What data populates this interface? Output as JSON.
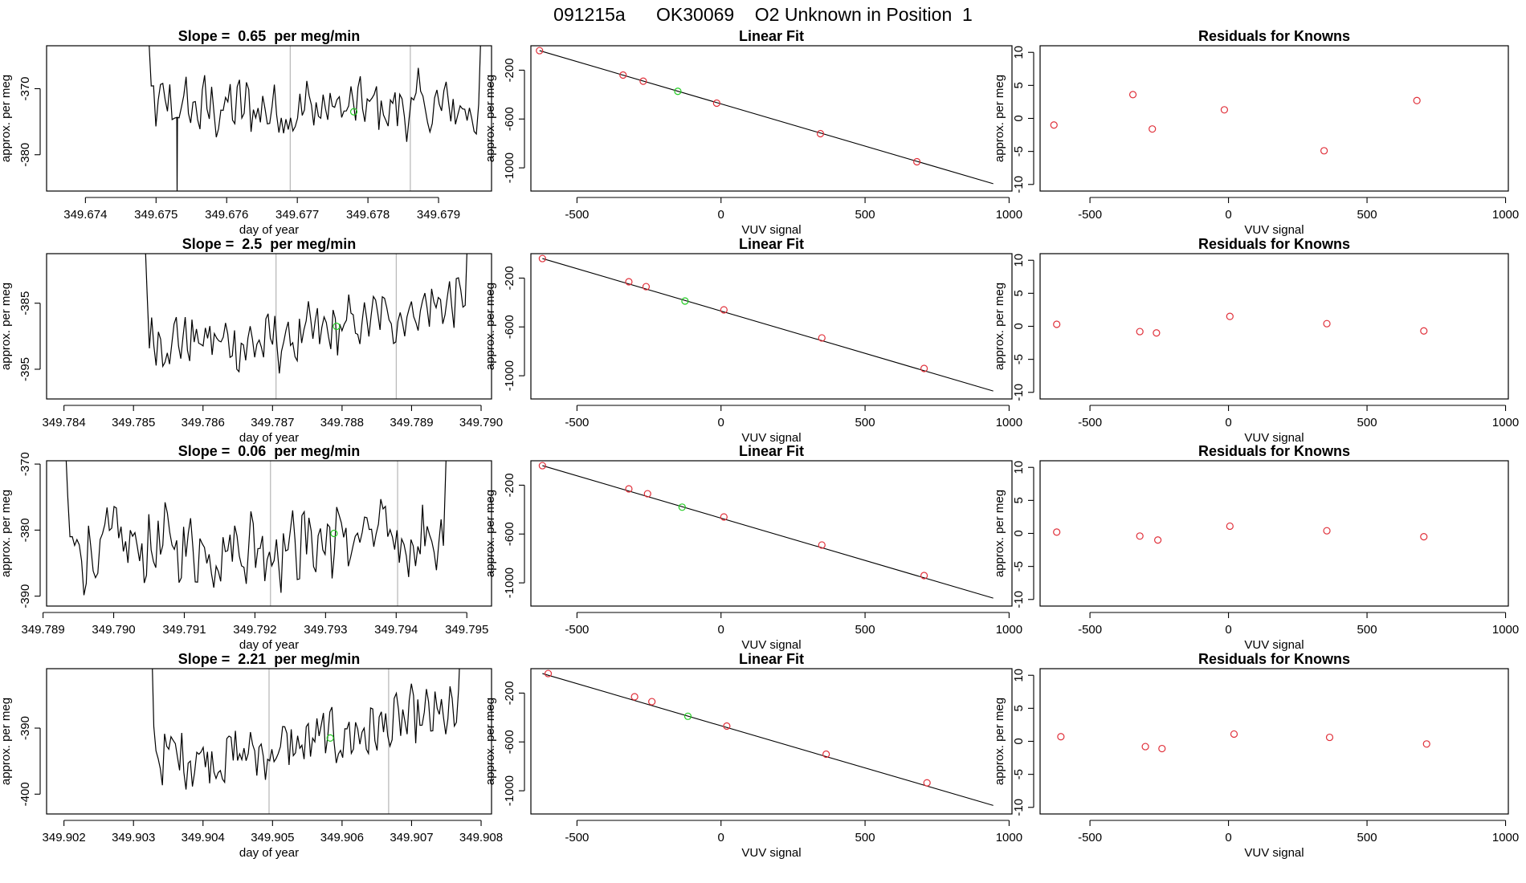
{
  "page_title": "091215a      OK30069    O2 Unknown in Position  1",
  "colors": {
    "trace": "#000000",
    "marker_known": "#e0303a",
    "marker_unknown": "#22cc22",
    "vline": "#bbbbbb"
  },
  "chart_data": [
    {
      "panel": "timeseries",
      "row": 1,
      "type": "line",
      "title": "Slope =  0.65  per meg/min",
      "xlabel": "day of year",
      "ylabel": "approx. per meg",
      "xlim": [
        349.67345,
        349.67975
      ],
      "ylim": [
        -385.5,
        -363.5
      ],
      "xticks": [
        349.674,
        349.675,
        349.676,
        349.677,
        349.678,
        349.679
      ],
      "xtick_labels": [
        "349.674",
        "349.675",
        "349.676",
        "349.677",
        "349.678",
        "349.679"
      ],
      "yticks": [
        -380,
        -370
      ],
      "ytick_labels": [
        "-380",
        "-370"
      ],
      "vlines": [
        349.6769,
        349.6786
      ],
      "marker": {
        "x": 349.6778,
        "y": -373.5
      },
      "trace": {
        "x_start": 349.6748,
        "x_end": 349.6797,
        "n": 150,
        "base_start": -373,
        "base_end": -373,
        "amp": 2.6,
        "drop_at": 349.6753,
        "drop_to": -385.5
      }
    },
    {
      "panel": "timeseries",
      "row": 2,
      "type": "line",
      "title": "Slope =  2.5  per meg/min",
      "xlabel": "day of year",
      "ylabel": "approx. per meg",
      "xlim": [
        349.78375,
        349.79015
      ],
      "ylim": [
        -399.5,
        -377.5
      ],
      "xticks": [
        349.784,
        349.785,
        349.786,
        349.787,
        349.788,
        349.789,
        349.79
      ],
      "xtick_labels": [
        "349.784",
        "349.785",
        "349.786",
        "349.787",
        "349.788",
        "349.789",
        "349.790"
      ],
      "yticks": [
        -395,
        -385
      ],
      "ytick_labels": [
        "-395",
        "-385"
      ],
      "vlines": [
        349.78705,
        349.78878
      ],
      "marker": {
        "x": 349.78792,
        "y": -388.5
      },
      "trace": {
        "x_start": 349.7851,
        "x_end": 349.7899,
        "n": 150,
        "base_start": -389,
        "base_end": -384,
        "amp": 2.4,
        "dip_center": 349.7871,
        "dip_depth": 4.0
      }
    },
    {
      "panel": "timeseries",
      "row": 3,
      "type": "line",
      "title": "Slope =  0.06  per meg/min",
      "xlabel": "day of year",
      "ylabel": "approx. per meg",
      "xlim": [
        349.78905,
        349.79535
      ],
      "ylim": [
        -391.5,
        -369.5
      ],
      "xticks": [
        349.789,
        349.79,
        349.791,
        349.792,
        349.793,
        349.794,
        349.795
      ],
      "xtick_labels": [
        "349.789",
        "349.790",
        "349.791",
        "349.792",
        "349.793",
        "349.794",
        "349.795"
      ],
      "yticks": [
        -390,
        -380,
        -370
      ],
      "ytick_labels": [
        "-390",
        "-380",
        "-370"
      ],
      "vlines": [
        349.79222,
        349.79402
      ],
      "marker": {
        "x": 349.79312,
        "y": -380.5
      },
      "trace": {
        "x_start": 349.78925,
        "x_end": 349.7948,
        "n": 170,
        "base_start": -383,
        "base_end": -381,
        "amp": 3.3
      }
    },
    {
      "panel": "timeseries",
      "row": 4,
      "type": "line",
      "title": "Slope =  2.21  per meg/min",
      "xlabel": "day of year",
      "ylabel": "approx. per meg",
      "xlim": [
        349.90175,
        349.90815
      ],
      "ylim": [
        -403,
        -381
      ],
      "xticks": [
        349.902,
        349.903,
        349.904,
        349.905,
        349.906,
        349.907,
        349.908
      ],
      "xtick_labels": [
        "349.902",
        "349.903",
        "349.904",
        "349.905",
        "349.906",
        "349.907",
        "349.908"
      ],
      "yticks": [
        -400,
        -390
      ],
      "ytick_labels": [
        "-400",
        "-390"
      ],
      "vlines": [
        349.90495,
        349.90667
      ],
      "marker": {
        "x": 349.90583,
        "y": -391.5
      },
      "trace": {
        "x_start": 349.9032,
        "x_end": 349.9078,
        "n": 150,
        "base_start": -393,
        "base_end": -388,
        "amp": 2.5,
        "dip_center": 349.9047,
        "dip_depth": 2.5
      }
    },
    {
      "panel": "linear_fit",
      "row": 1,
      "type": "scatter",
      "title": "Linear Fit",
      "xlabel": "VUV signal",
      "ylabel": "approx. per meg",
      "xlim": [
        -660,
        1010
      ],
      "ylim": [
        -1190,
        0
      ],
      "xticks": [
        -500,
        0,
        500,
        1000
      ],
      "xtick_labels": [
        "-500",
        "0",
        "500",
        "1000"
      ],
      "yticks": [
        -1000,
        -600,
        -200
      ],
      "ytick_labels": [
        "-1000",
        "-600",
        "-200"
      ],
      "fit_line": {
        "x": [
          -630,
          945
        ],
        "y": [
          -40,
          -1130
        ]
      },
      "known_points": {
        "x": [
          -630,
          -340,
          -270,
          -15,
          345,
          680
        ],
        "y": [
          -40,
          -240,
          -290,
          -470,
          -720,
          -950
        ]
      },
      "unknown_points": {
        "x": [
          -150
        ],
        "y": [
          -373
        ]
      }
    },
    {
      "panel": "linear_fit",
      "row": 2,
      "type": "scatter",
      "title": "Linear Fit",
      "xlabel": "VUV signal",
      "ylabel": "approx. per meg",
      "xlim": [
        -660,
        1010
      ],
      "ylim": [
        -1190,
        0
      ],
      "xticks": [
        -500,
        0,
        500,
        1000
      ],
      "xtick_labels": [
        "-500",
        "0",
        "500",
        "1000"
      ],
      "yticks": [
        -1000,
        -600,
        -200
      ],
      "ytick_labels": [
        "-1000",
        "-600",
        "-200"
      ],
      "fit_line": {
        "x": [
          -620,
          945
        ],
        "y": [
          -40,
          -1125
        ]
      },
      "known_points": {
        "x": [
          -620,
          -320,
          -260,
          10,
          350,
          705
        ],
        "y": [
          -40,
          -230,
          -270,
          -460,
          -690,
          -940
        ]
      },
      "unknown_points": {
        "x": [
          -125
        ],
        "y": [
          -388
        ]
      }
    },
    {
      "panel": "linear_fit",
      "row": 3,
      "type": "scatter",
      "title": "Linear Fit",
      "xlabel": "VUV signal",
      "ylabel": "approx. per meg",
      "xlim": [
        -660,
        1010
      ],
      "ylim": [
        -1190,
        0
      ],
      "xticks": [
        -500,
        0,
        500,
        1000
      ],
      "xtick_labels": [
        "-500",
        "0",
        "500",
        "1000"
      ],
      "yticks": [
        -1000,
        -600,
        -200
      ],
      "ytick_labels": [
        "-1000",
        "-600",
        "-200"
      ],
      "fit_line": {
        "x": [
          -620,
          945
        ],
        "y": [
          -40,
          -1125
        ]
      },
      "known_points": {
        "x": [
          -620,
          -320,
          -255,
          10,
          350,
          705
        ],
        "y": [
          -40,
          -230,
          -270,
          -460,
          -690,
          -940
        ]
      },
      "unknown_points": {
        "x": [
          -135
        ],
        "y": [
          -380
        ]
      }
    },
    {
      "panel": "linear_fit",
      "row": 4,
      "type": "scatter",
      "title": "Linear Fit",
      "xlabel": "VUV signal",
      "ylabel": "approx. per meg",
      "xlim": [
        -660,
        1010
      ],
      "ylim": [
        -1190,
        0
      ],
      "xticks": [
        -500,
        0,
        500,
        1000
      ],
      "xtick_labels": [
        "-500",
        "0",
        "500",
        "1000"
      ],
      "yticks": [
        -1000,
        -600,
        -200
      ],
      "ytick_labels": [
        "-1000",
        "-600",
        "-200"
      ],
      "fit_line": {
        "x": [
          -620,
          945
        ],
        "y": [
          -40,
          -1120
        ]
      },
      "known_points": {
        "x": [
          -600,
          -300,
          -240,
          20,
          365,
          715
        ],
        "y": [
          -40,
          -230,
          -270,
          -470,
          -700,
          -935
        ]
      },
      "unknown_points": {
        "x": [
          -115
        ],
        "y": [
          -390
        ]
      }
    },
    {
      "panel": "residuals",
      "row": 1,
      "type": "scatter",
      "title": "Residuals for Knowns",
      "xlabel": "VUV signal",
      "ylabel": "approx. per meg",
      "xlim": [
        -680,
        1010
      ],
      "ylim": [
        -11,
        11
      ],
      "xticks": [
        -500,
        0,
        500,
        1000
      ],
      "xtick_labels": [
        "-500",
        "0",
        "500",
        "1000"
      ],
      "yticks": [
        -10,
        -5,
        0,
        5,
        10
      ],
      "ytick_labels": [
        "-10",
        "-5",
        "0",
        "5",
        "10"
      ],
      "known_points": {
        "x": [
          -630,
          -345,
          -275,
          -15,
          345,
          680
        ],
        "y": [
          -1.0,
          3.6,
          -1.6,
          1.3,
          -4.9,
          2.7
        ]
      }
    },
    {
      "panel": "residuals",
      "row": 2,
      "type": "scatter",
      "title": "Residuals for Knowns",
      "xlabel": "VUV signal",
      "ylabel": "approx. per meg",
      "xlim": [
        -680,
        1010
      ],
      "ylim": [
        -11,
        11
      ],
      "xticks": [
        -500,
        0,
        500,
        1000
      ],
      "xtick_labels": [
        "-500",
        "0",
        "500",
        "1000"
      ],
      "yticks": [
        -10,
        -5,
        0,
        5,
        10
      ],
      "ytick_labels": [
        "-10",
        "-5",
        "0",
        "5",
        "10"
      ],
      "known_points": {
        "x": [
          -620,
          -320,
          -260,
          5,
          355,
          705
        ],
        "y": [
          0.3,
          -0.8,
          -1.0,
          1.5,
          0.4,
          -0.7
        ]
      }
    },
    {
      "panel": "residuals",
      "row": 3,
      "type": "scatter",
      "title": "Residuals for Knowns",
      "xlabel": "VUV signal",
      "ylabel": "approx. per meg",
      "xlim": [
        -680,
        1010
      ],
      "ylim": [
        -11,
        11
      ],
      "xticks": [
        -500,
        0,
        500,
        1000
      ],
      "xtick_labels": [
        "-500",
        "0",
        "500",
        "1000"
      ],
      "yticks": [
        -10,
        -5,
        0,
        5,
        10
      ],
      "ytick_labels": [
        "-10",
        "-5",
        "0",
        "5",
        "10"
      ],
      "known_points": {
        "x": [
          -620,
          -320,
          -255,
          5,
          355,
          705
        ],
        "y": [
          0.2,
          -0.4,
          -1.0,
          1.1,
          0.4,
          -0.5
        ]
      }
    },
    {
      "panel": "residuals",
      "row": 4,
      "type": "scatter",
      "title": "Residuals for Knowns",
      "xlabel": "VUV signal",
      "ylabel": "approx. per meg",
      "xlim": [
        -680,
        1010
      ],
      "ylim": [
        -11,
        11
      ],
      "xticks": [
        -500,
        0,
        500,
        1000
      ],
      "xtick_labels": [
        "-500",
        "0",
        "500",
        "1000"
      ],
      "yticks": [
        -10,
        -5,
        0,
        5,
        10
      ],
      "ytick_labels": [
        "-10",
        "-5",
        "0",
        "5",
        "10"
      ],
      "known_points": {
        "x": [
          -605,
          -300,
          -240,
          20,
          365,
          715
        ],
        "y": [
          0.7,
          -0.8,
          -1.1,
          1.1,
          0.6,
          -0.4
        ]
      }
    }
  ]
}
